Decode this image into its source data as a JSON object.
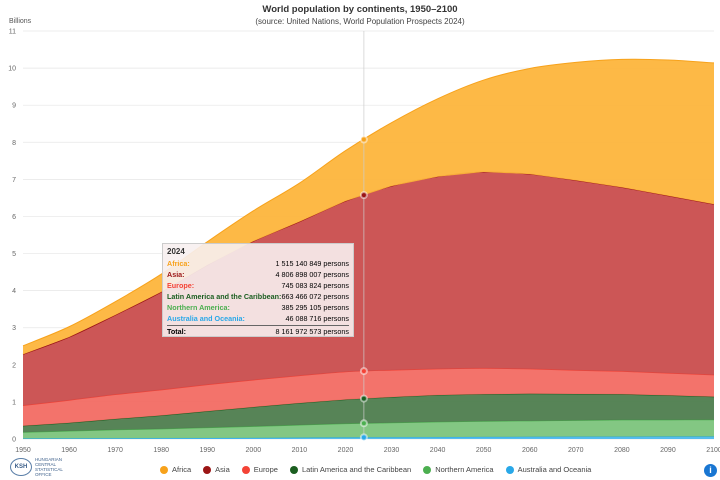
{
  "title": "World population by continents, 1950–2100",
  "subtitle": "(source: United Nations, World Population Prospects 2024)",
  "logo_text": "HUNGARIAN CENTRAL STATISTICAL OFFICE",
  "logo_abbr": "KSH",
  "info_label": "i",
  "chart_data": {
    "type": "area",
    "stacked": true,
    "title": "World population by continents, 1950–2100",
    "subtitle": "(source: United Nations, World Population Prospects 2024)",
    "ylabel": "Billions",
    "xlim": [
      1950,
      2100
    ],
    "ylim": [
      0,
      11
    ],
    "x_ticks": [
      1950,
      1960,
      1970,
      1980,
      1990,
      2000,
      2010,
      2020,
      2030,
      2040,
      2050,
      2060,
      2070,
      2080,
      2090,
      2100
    ],
    "y_ticks": [
      0,
      1,
      2,
      3,
      4,
      5,
      6,
      7,
      8,
      9,
      10,
      11
    ],
    "grid": true,
    "legend": "bottom",
    "x": [
      1950,
      1960,
      1970,
      1980,
      1990,
      2000,
      2010,
      2020,
      2030,
      2040,
      2050,
      2060,
      2070,
      2080,
      2090,
      2100
    ],
    "series": [
      {
        "name": "Australia and Oceania",
        "legend_color": "#29a8e8",
        "fill": "#4db8ee",
        "values": [
          0.013,
          0.016,
          0.019,
          0.023,
          0.027,
          0.031,
          0.037,
          0.043,
          0.048,
          0.052,
          0.057,
          0.06,
          0.063,
          0.065,
          0.067,
          0.069
        ]
      },
      {
        "name": "Northern America",
        "legend_color": "#4caf50",
        "fill": "#7cc47c",
        "values": [
          0.17,
          0.2,
          0.23,
          0.25,
          0.28,
          0.31,
          0.34,
          0.37,
          0.39,
          0.41,
          0.42,
          0.43,
          0.44,
          0.45,
          0.45,
          0.45
        ]
      },
      {
        "name": "Latin America and the Caribbean",
        "legend_color": "#1b5e20",
        "fill": "#4e7d4e",
        "values": [
          0.17,
          0.22,
          0.29,
          0.36,
          0.44,
          0.52,
          0.59,
          0.65,
          0.69,
          0.72,
          0.73,
          0.73,
          0.71,
          0.69,
          0.66,
          0.62
        ]
      },
      {
        "name": "Europe",
        "legend_color": "#f44336",
        "fill": "#f26b63",
        "values": [
          0.55,
          0.61,
          0.66,
          0.69,
          0.72,
          0.73,
          0.74,
          0.75,
          0.73,
          0.71,
          0.7,
          0.67,
          0.64,
          0.62,
          0.6,
          0.59
        ]
      },
      {
        "name": "Asia",
        "legend_color": "#9b1515",
        "fill": "#c94d4d",
        "values": [
          1.38,
          1.7,
          2.14,
          2.64,
          3.22,
          3.74,
          4.15,
          4.6,
          4.96,
          5.18,
          5.29,
          5.25,
          5.12,
          4.96,
          4.78,
          4.6
        ]
      },
      {
        "name": "Africa",
        "legend_color": "#f7a21b",
        "fill": "#fdb53c",
        "values": [
          0.23,
          0.28,
          0.36,
          0.48,
          0.63,
          0.82,
          1.04,
          1.36,
          1.71,
          2.1,
          2.48,
          2.85,
          3.18,
          3.45,
          3.66,
          3.81
        ]
      }
    ],
    "legend_order": [
      "Africa",
      "Asia",
      "Europe",
      "Latin America and the Caribbean",
      "Northern America",
      "Australia and Oceania"
    ],
    "tooltip": {
      "year": "2024",
      "rows": [
        {
          "label": "Africa:",
          "value": "1 515 140 849 persons",
          "color": "#f7a21b"
        },
        {
          "label": "Asia:",
          "value": "4 806 898 007 persons",
          "color": "#9b1515"
        },
        {
          "label": "Europe:",
          "value": "745 083 824 persons",
          "color": "#f44336"
        },
        {
          "label": "Latin America and the Caribbean:",
          "value": "663 466 072 persons",
          "color": "#1b5e20"
        },
        {
          "label": "Northern America:",
          "value": "385 295 105 persons",
          "color": "#4caf50"
        },
        {
          "label": "Australia and Oceania:",
          "value": "46 088 716 persons",
          "color": "#29a8e8"
        }
      ],
      "total_label": "Total:",
      "total_value": "8 161 972 573 persons"
    }
  }
}
